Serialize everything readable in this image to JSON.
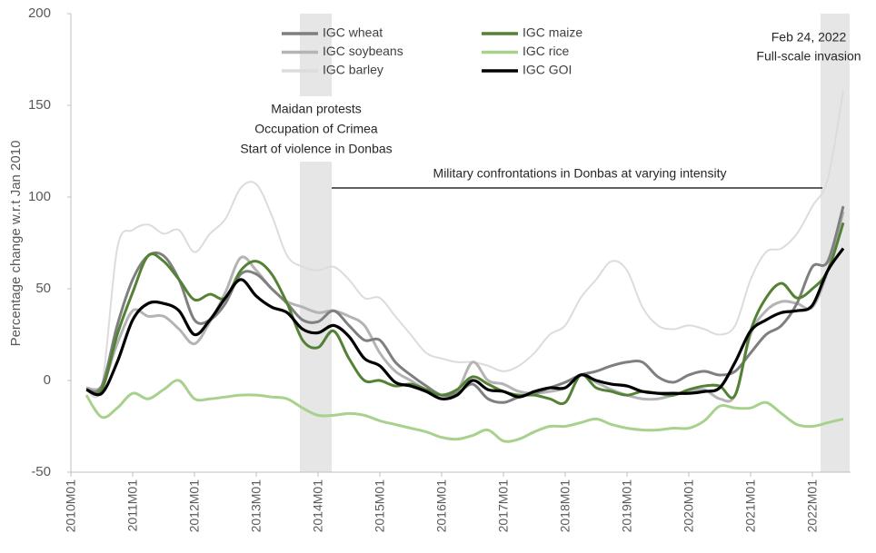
{
  "chart_data": {
    "type": "line",
    "y_label": "Percentage change w.r.t Jan 2010",
    "annotations": [
      "Maidan protests",
      "Occupation of Crimea",
      "Start of violence in Donbas",
      "Military confrontations in Donbas at varying intensity",
      "Feb 24, 2022",
      "Full-scale invasion"
    ],
    "categories": [
      "2010M01",
      null,
      null,
      null,
      "2011M01",
      null,
      null,
      null,
      "2012M01",
      null,
      null,
      null,
      "2013M01",
      null,
      null,
      null,
      "2014M01",
      null,
      null,
      null,
      "2015M01",
      null,
      null,
      null,
      "2016M01",
      null,
      null,
      null,
      "2017M01",
      null,
      null,
      null,
      "2018M01",
      null,
      null,
      null,
      "2019M01",
      null,
      null,
      null,
      "2020M01",
      null,
      null,
      null,
      "2021M01",
      null,
      null,
      null,
      "2022M01",
      null,
      null
    ],
    "series": [
      {
        "name": "IGC wheat",
        "color": "#7f7f7f",
        "values": [
          null,
          -5,
          -3,
          30,
          55,
          68,
          68,
          55,
          33,
          33,
          42,
          58,
          58,
          50,
          42,
          33,
          32,
          38,
          30,
          22,
          22,
          10,
          3,
          -3,
          -8,
          -7,
          -2,
          -10,
          -12,
          -9,
          -7,
          -4,
          -1,
          3,
          5,
          8,
          10,
          10,
          2,
          -1,
          3,
          5,
          3,
          5,
          15,
          25,
          30,
          42,
          62,
          65,
          95
        ]
      },
      {
        "name": "IGC maize",
        "color": "#548235",
        "values": [
          null,
          -5,
          -5,
          25,
          48,
          68,
          65,
          55,
          44,
          47,
          45,
          60,
          65,
          58,
          42,
          22,
          18,
          27,
          12,
          0,
          0,
          -3,
          -2,
          -5,
          -8,
          -5,
          2,
          -2,
          -6,
          -8,
          -8,
          -10,
          -12,
          3,
          -4,
          -6,
          -8,
          -6,
          -7,
          -8,
          -5,
          -3,
          -3,
          -8,
          27,
          45,
          53,
          45,
          50,
          60,
          86
        ]
      },
      {
        "name": "IGC soybeans",
        "color": "#b4b4b4",
        "values": [
          null,
          -4,
          -3,
          20,
          38,
          35,
          35,
          28,
          20,
          32,
          48,
          67,
          60,
          50,
          43,
          40,
          37,
          38,
          35,
          30,
          15,
          5,
          0,
          -5,
          -8,
          -6,
          10,
          0,
          -2,
          -6,
          -7,
          -6,
          -4,
          3,
          -1,
          -5,
          -8,
          -10,
          -10,
          -8,
          -6,
          -5,
          -10,
          -8,
          25,
          38,
          43,
          42,
          40,
          60,
          92
        ]
      },
      {
        "name": "IGC rice",
        "color": "#a9d18e",
        "values": [
          null,
          -8,
          -20,
          -15,
          -7,
          -10,
          -5,
          0,
          -10,
          -10,
          -9,
          -8,
          -8,
          -9,
          -10,
          -15,
          -19,
          -19,
          -18,
          -19,
          -22,
          -24,
          -26,
          -28,
          -31,
          -32,
          -30,
          -27,
          -33,
          -32,
          -28,
          -25,
          -25,
          -23,
          -21,
          -24,
          -26,
          -27,
          -27,
          -26,
          -26,
          -22,
          -14,
          -15,
          -15,
          -12,
          -18,
          -24,
          -25,
          -23,
          -21
        ]
      },
      {
        "name": "IGC barley",
        "color": "#dcdcdc",
        "values": [
          null,
          -5,
          -3,
          72,
          82,
          85,
          80,
          82,
          70,
          80,
          88,
          105,
          107,
          90,
          68,
          62,
          60,
          62,
          55,
          45,
          45,
          35,
          25,
          15,
          12,
          10,
          10,
          8,
          5,
          8,
          15,
          25,
          30,
          45,
          55,
          65,
          60,
          40,
          30,
          28,
          30,
          28,
          25,
          30,
          55,
          70,
          72,
          80,
          95,
          110,
          158
        ]
      },
      {
        "name": "IGC GOI",
        "color": "#000000",
        "values": [
          null,
          -5,
          -7,
          10,
          33,
          42,
          42,
          38,
          25,
          33,
          45,
          55,
          46,
          40,
          37,
          28,
          26,
          30,
          24,
          12,
          8,
          -1,
          -3,
          -6,
          -10,
          -8,
          0,
          -5,
          -6,
          -9,
          -6,
          -4,
          -4,
          3,
          0,
          -2,
          -3,
          -6,
          -7,
          -7,
          -7,
          -6,
          -4,
          10,
          27,
          33,
          37,
          38,
          41,
          60,
          72
        ]
      }
    ],
    "ylim": [
      -50,
      200
    ],
    "yticks": [
      -50,
      0,
      50,
      100,
      150,
      200
    ]
  }
}
